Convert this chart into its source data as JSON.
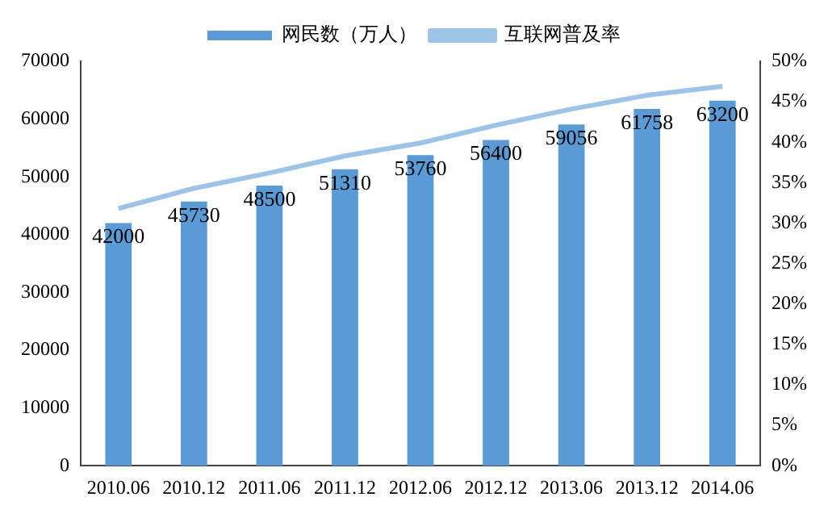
{
  "chart_data": {
    "type": "bar",
    "categories": [
      "2010.06",
      "2010.12",
      "2011.06",
      "2011.12",
      "2012.06",
      "2012.12",
      "2013.06",
      "2013.12",
      "2014.06"
    ],
    "series": [
      {
        "name": "网民数（万人）",
        "color": "#5b9bd5",
        "values": [
          42000,
          45730,
          48500,
          51310,
          53760,
          56400,
          59056,
          61758,
          63200
        ],
        "value_labels": [
          "42000",
          "45730",
          "48500",
          "51310",
          "53760",
          "56400",
          "59056",
          "61758",
          "63200"
        ]
      },
      {
        "name": "互联网普及率",
        "type": "line",
        "axis": "y2",
        "color": "#9dc3e6",
        "values": [
          31.8,
          34.3,
          36.2,
          38.3,
          39.9,
          42.1,
          44.1,
          45.8,
          46.9
        ]
      }
    ],
    "ylim": [
      0,
      70000
    ],
    "yticks": [
      0,
      10000,
      20000,
      30000,
      40000,
      50000,
      60000,
      70000
    ],
    "y2lim": [
      0,
      50
    ],
    "y2ticks": [
      {
        "value": 0,
        "label": "0%"
      },
      {
        "value": 5,
        "label": "5%"
      },
      {
        "value": 10,
        "label": "10%"
      },
      {
        "value": 15,
        "label": "15%"
      },
      {
        "value": 20,
        "label": "20%"
      },
      {
        "value": 25,
        "label": "25%"
      },
      {
        "value": 30,
        "label": "30%"
      },
      {
        "value": 35,
        "label": "35%"
      },
      {
        "value": 40,
        "label": "40%"
      },
      {
        "value": 45,
        "label": "45%"
      },
      {
        "value": 50,
        "label": "50%"
      }
    ],
    "grid": false,
    "legend": "top",
    "marker": "none",
    "line_style": "solid"
  }
}
